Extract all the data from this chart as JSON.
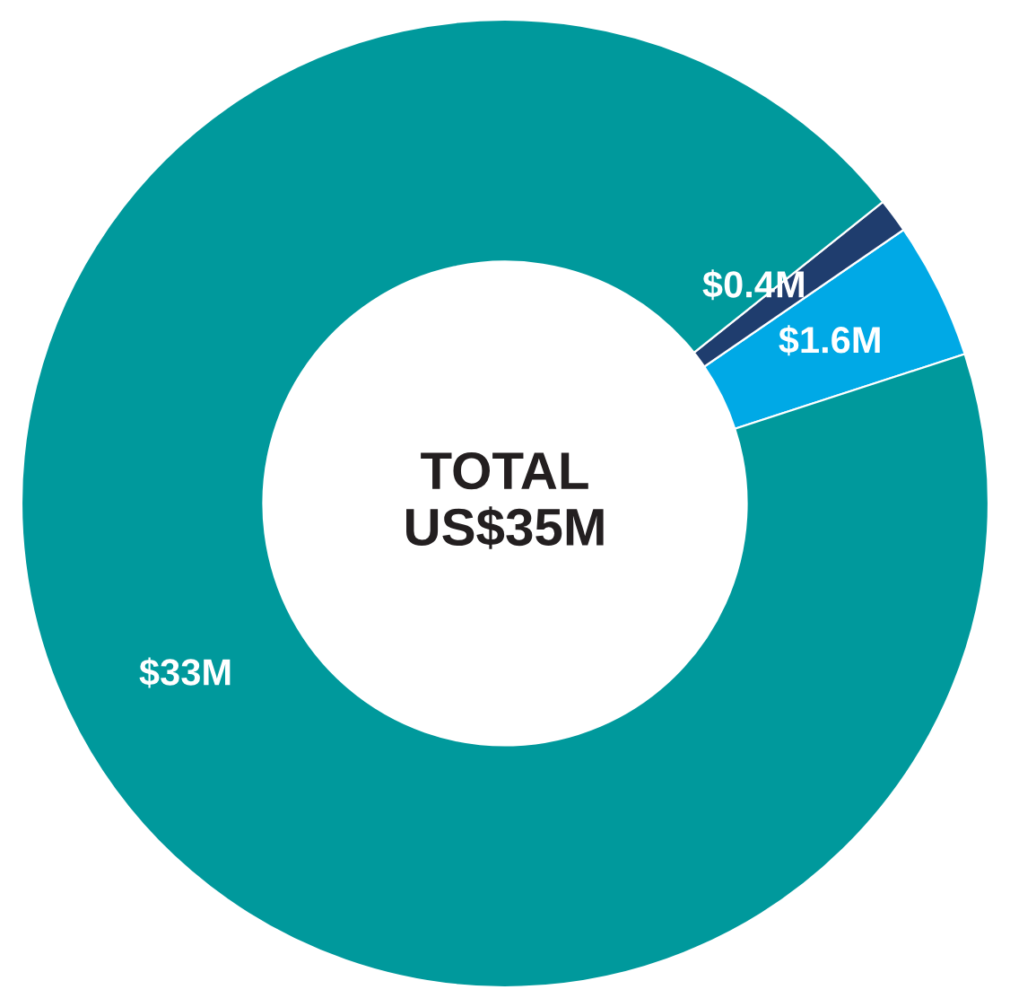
{
  "chart_data": {
    "type": "donut",
    "categories": [
      null,
      null,
      null
    ],
    "values": [
      1.6,
      0.4,
      33
    ],
    "colors": [
      "#00a9e6",
      "#1f3d6e",
      "#00999c"
    ],
    "value_labels": [
      "$1.6M",
      "$0.4M",
      "$33M"
    ],
    "annotations": [
      "TOTAL\nUS$35M"
    ],
    "legend": false
  }
}
